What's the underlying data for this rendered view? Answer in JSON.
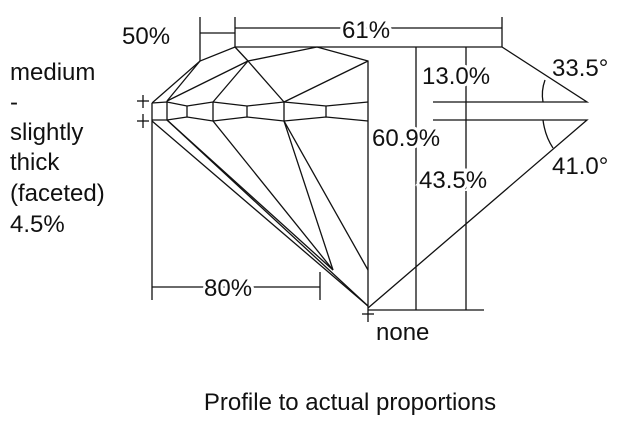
{
  "diagram": {
    "caption": "Profile to actual proportions",
    "girdle_label": [
      "medium",
      "-",
      "slightly",
      "thick",
      "(faceted)",
      "4.5%"
    ],
    "star_length": "50%",
    "table": "61%",
    "crown_height": "13.0%",
    "crown_angle": "33.5°",
    "total_depth": "60.9%",
    "pavilion_depth": "43.5%",
    "pavilion_angle": "41.0°",
    "lower_half_length": "80%",
    "culet": "none"
  }
}
